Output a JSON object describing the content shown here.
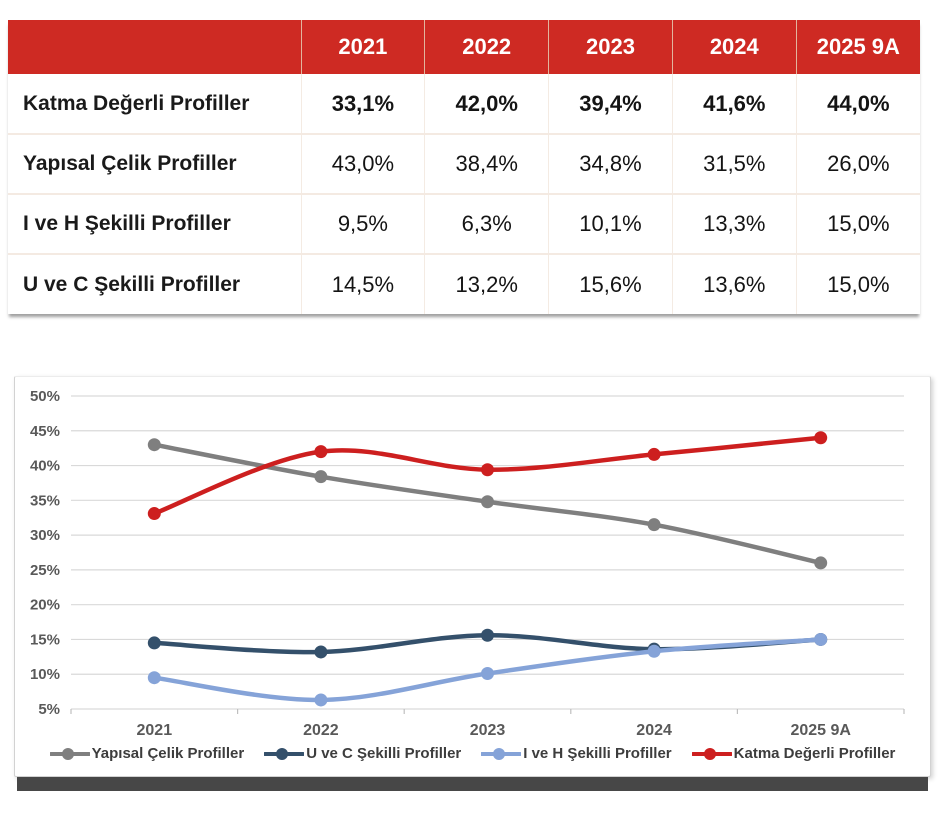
{
  "table": {
    "header_color": "#CE2A23",
    "header_text_color": "#FFFFFF",
    "columns": [
      "2021",
      "2022",
      "2023",
      "2024",
      "2025 9A"
    ],
    "rows": [
      {
        "label": "Katma Değerli Profiller",
        "emphasis": true,
        "values": [
          "33,1%",
          "42,0%",
          "39,4%",
          "41,6%",
          "44,0%"
        ]
      },
      {
        "label": "Yapısal Çelik Profiller",
        "emphasis": false,
        "values": [
          "43,0%",
          "38,4%",
          "34,8%",
          "31,5%",
          "26,0%"
        ]
      },
      {
        "label": "I ve H Şekilli Profiller",
        "emphasis": false,
        "values": [
          "9,5%",
          "6,3%",
          "10,1%",
          "13,3%",
          "15,0%"
        ]
      },
      {
        "label": "U ve C Şekilli Profiller",
        "emphasis": false,
        "values": [
          "14,5%",
          "13,2%",
          "15,6%",
          "13,6%",
          "15,0%"
        ]
      }
    ]
  },
  "chart_data": {
    "type": "line",
    "smooth": true,
    "grid": true,
    "legend_position": "bottom",
    "categories": [
      "2021",
      "2022",
      "2023",
      "2024",
      "2025 9A"
    ],
    "series": [
      {
        "name": "Yapısal Çelik Profiller",
        "color": "#7F7F7F",
        "values": [
          43.0,
          38.4,
          34.8,
          31.5,
          26.0
        ]
      },
      {
        "name": "U ve C Şekilli Profiller",
        "color": "#34506B",
        "values": [
          14.5,
          13.2,
          15.6,
          13.6,
          15.0
        ]
      },
      {
        "name": "I ve H Şekilli Profiller",
        "color": "#85A3D8",
        "values": [
          9.5,
          6.3,
          10.1,
          13.3,
          15.0
        ]
      },
      {
        "name": "Katma Değerli Profiller",
        "color": "#CD1F1F",
        "values": [
          33.1,
          42.0,
          39.4,
          41.6,
          44.0
        ]
      }
    ],
    "ylim": [
      5,
      50
    ],
    "ytick_step": 5,
    "ytick_suffix": "%",
    "xlabel": "",
    "ylabel": "",
    "axis_label_color": "#595959",
    "gridline_color": "#D9D9D9",
    "tick_color": "#BFBFBF"
  }
}
